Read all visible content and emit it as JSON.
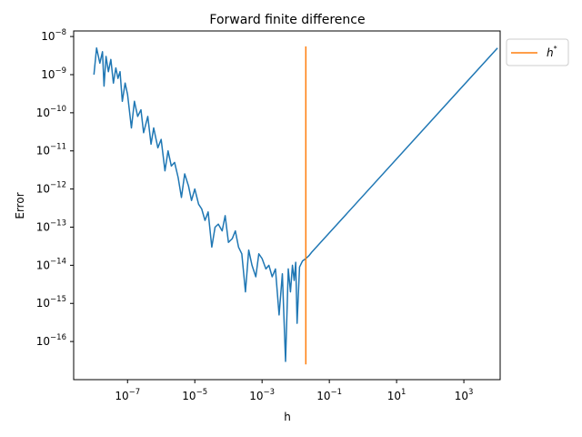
{
  "chart_data": {
    "type": "line",
    "title": "Forward finite difference",
    "xlabel": "h",
    "ylabel": "Error",
    "xscale": "log",
    "yscale": "log",
    "xlim": [
      2.5e-09,
      12000.0
    ],
    "ylim": [
      1e-17,
      1.4e-08
    ],
    "grid": false,
    "legend_position": "outside-top-right",
    "x_ticks": [
      {
        "value": 1e-07,
        "base": "10",
        "exp": "−7"
      },
      {
        "value": 1e-05,
        "base": "10",
        "exp": "−5"
      },
      {
        "value": 0.001,
        "base": "10",
        "exp": "−3"
      },
      {
        "value": 0.1,
        "base": "10",
        "exp": "−1"
      },
      {
        "value": 10,
        "base": "10",
        "exp": "1"
      },
      {
        "value": 1000,
        "base": "10",
        "exp": "3"
      }
    ],
    "y_ticks": [
      {
        "value": 1e-16,
        "base": "10",
        "exp": "−16"
      },
      {
        "value": 1e-15,
        "base": "10",
        "exp": "−15"
      },
      {
        "value": 1e-14,
        "base": "10",
        "exp": "−14"
      },
      {
        "value": 1e-13,
        "base": "10",
        "exp": "−13"
      },
      {
        "value": 1e-12,
        "base": "10",
        "exp": "−12"
      },
      {
        "value": 1e-11,
        "base": "10",
        "exp": "−11"
      },
      {
        "value": 1e-10,
        "base": "10",
        "exp": "−10"
      },
      {
        "value": 1e-09,
        "base": "10",
        "exp": "−9"
      },
      {
        "value": 1e-08,
        "base": "10",
        "exp": "−8"
      }
    ],
    "series": [
      {
        "color": "#1f77b4",
        "x": [
          1e-08,
          1.2e-08,
          1.5e-08,
          1.8e-08,
          2e-08,
          2.3e-08,
          2.7e-08,
          3.2e-08,
          3.8e-08,
          4.5e-08,
          5.2e-08,
          6e-08,
          7e-08,
          8.5e-08,
          1e-07,
          1.3e-07,
          1.6e-07,
          2e-07,
          2.5e-07,
          3e-07,
          4e-07,
          5e-07,
          6e-07,
          8e-07,
          1e-06,
          1.3e-06,
          1.6e-06,
          2e-06,
          2.5e-06,
          3.2e-06,
          4e-06,
          5e-06,
          6.5e-06,
          8e-06,
          1e-05,
          1.3e-05,
          1.6e-05,
          2e-05,
          2.5e-05,
          3.2e-05,
          4e-05,
          5e-05,
          6.5e-05,
          8e-05,
          0.0001,
          0.00013,
          0.00016,
          0.0002,
          0.00025,
          0.00032,
          0.0004,
          0.0005,
          0.00065,
          0.0008,
          0.001,
          0.0013,
          0.0016,
          0.002,
          0.0025,
          0.0032,
          0.004,
          0.005,
          0.006,
          0.007,
          0.008,
          0.009,
          0.01,
          0.011,
          0.013,
          0.016,
          0.02,
          0.025,
          0.03,
          10000.0
        ],
        "y": [
          1e-09,
          5e-09,
          2e-09,
          4e-09,
          5e-10,
          3e-09,
          1.2e-09,
          2.5e-09,
          6e-10,
          1.5e-09,
          8e-10,
          1.2e-09,
          2e-10,
          6e-10,
          3e-10,
          4e-11,
          2e-10,
          8e-11,
          1.2e-10,
          3e-11,
          8e-11,
          1.5e-11,
          4e-11,
          1.2e-11,
          2e-11,
          3e-12,
          1e-11,
          4e-12,
          5e-12,
          2e-12,
          6e-13,
          2.5e-12,
          1.2e-12,
          5e-13,
          1e-12,
          4e-13,
          3e-13,
          1.5e-13,
          2.5e-13,
          3e-14,
          1e-13,
          1.2e-13,
          8e-14,
          2e-13,
          4e-14,
          5e-14,
          8e-14,
          3e-14,
          2e-14,
          2e-15,
          2.5e-14,
          1e-14,
          5e-15,
          2e-14,
          1.5e-14,
          8e-15,
          1e-14,
          5e-15,
          8e-15,
          5e-16,
          6e-15,
          3e-17,
          8e-15,
          2e-15,
          1e-14,
          4e-15,
          1.2e-14,
          3e-16,
          9e-15,
          1.3e-14,
          1.5e-14,
          1.8e-14,
          2.2e-14,
          5e-09
        ]
      },
      {
        "name": "h*",
        "color": "#ff7f0e",
        "x": [
          0.02,
          0.02
        ],
        "y": [
          2.5e-17,
          5.5e-09
        ]
      }
    ]
  }
}
